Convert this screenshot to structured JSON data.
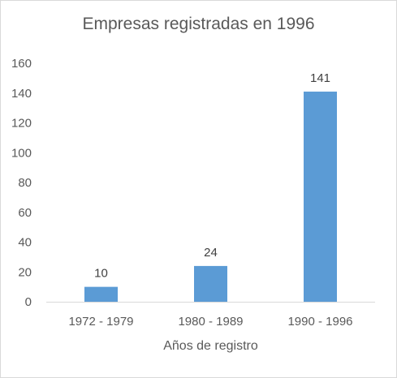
{
  "chart_data": {
    "type": "bar",
    "title": "Empresas registradas en 1996",
    "xlabel": "Años de registro",
    "ylabel": "",
    "categories": [
      "1972 - 1979",
      "1980 - 1989",
      "1990 - 1996"
    ],
    "values": [
      10,
      24,
      141
    ],
    "data_labels": [
      "10",
      "24",
      "141"
    ],
    "ylim": [
      0,
      160
    ],
    "yticks": [
      0,
      20,
      40,
      60,
      80,
      100,
      120,
      140,
      160
    ],
    "grid": false,
    "legend": "none",
    "bar_color": "#5b9bd5"
  }
}
